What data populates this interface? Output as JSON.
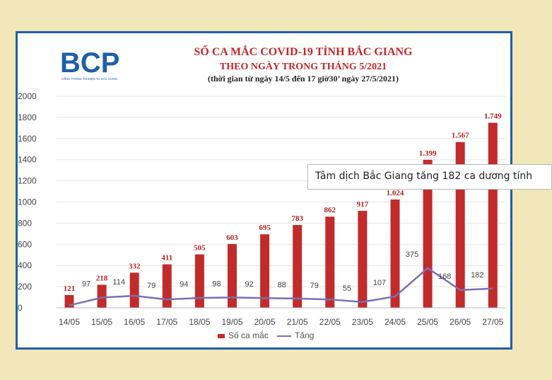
{
  "logo": {
    "text": "BCP",
    "subtitle": "CỔNG THÔNG TIN ĐIỆN TỬ BẮC GIANG"
  },
  "colors": {
    "bar": "#c22b2b",
    "line": "#7b6fb5",
    "title": "#c0272d",
    "frame": "#1f5fa8",
    "logo": "#1f5fa8"
  },
  "chart_data": {
    "type": "bar",
    "title": "SỐ CA MẮC COVID-19 TỈNH BẮC GIANG",
    "subtitle": "THEO NGÀY TRONG THÁNG 5/2021",
    "note": "(thời gian từ ngày 14/5 đến 17 giờ30’ ngày 27/5/2021)",
    "categories": [
      "14/05",
      "15/05",
      "16/05",
      "17/05",
      "18/05",
      "19/05",
      "20/05",
      "21/05",
      "22/05",
      "23/05",
      "24/05",
      "25/05",
      "26/05",
      "27/05"
    ],
    "series": [
      {
        "name": "Số ca mắc",
        "type": "bar",
        "values": [
          121,
          218,
          332,
          411,
          505,
          603,
          695,
          783,
          862,
          917,
          1024,
          1399,
          1567,
          1749
        ],
        "labels": [
          "121",
          "218",
          "332",
          "411",
          "505",
          "603",
          "695",
          "783",
          "862",
          "917",
          "1.024",
          "1.399",
          "1.567",
          "1.749"
        ]
      },
      {
        "name": "Tăng",
        "type": "line",
        "values": [
          23,
          97,
          114,
          79,
          94,
          98,
          92,
          88,
          79,
          55,
          107,
          375,
          168,
          182
        ],
        "labels": [
          "",
          "97",
          "114",
          "79",
          "94",
          "98",
          "92",
          "88",
          "79",
          "55",
          "107",
          "375",
          "168",
          "182"
        ]
      }
    ],
    "yticks": [
      "0",
      "200",
      "400",
      "600",
      "800",
      "1000",
      "1200",
      "1400",
      "1600",
      "1800",
      "2000"
    ],
    "ylim": [
      0,
      2000
    ],
    "legend_position": "bottom"
  },
  "tooltip": {
    "text": "Tâm dịch Bắc Giang tăng 182 ca dương tính"
  }
}
